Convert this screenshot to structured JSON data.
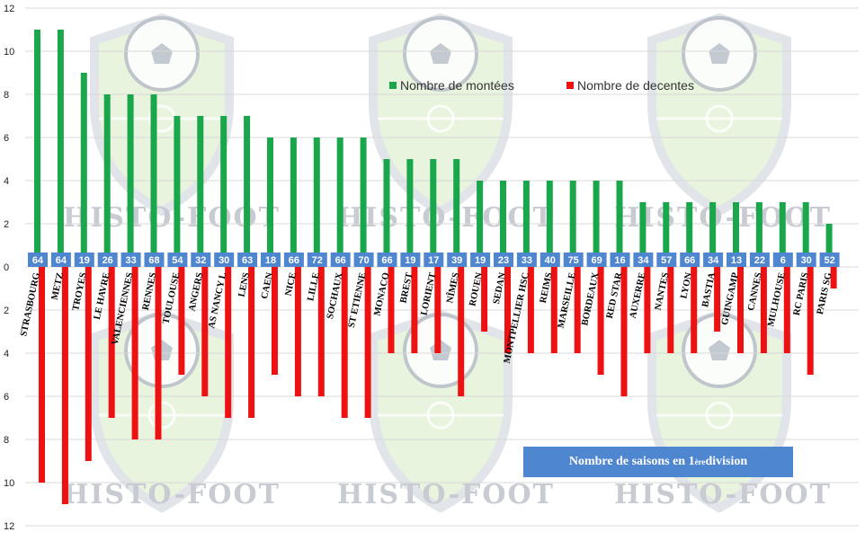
{
  "chart_data": {
    "type": "bar",
    "title": "",
    "xlabel": "",
    "ylabel": "",
    "ylim": [
      -12,
      12
    ],
    "yticks": [
      12,
      10,
      8,
      6,
      4,
      2,
      0,
      2,
      4,
      6,
      8,
      10,
      12
    ],
    "grid": "horizontal",
    "legend_position": "top-center",
    "categories": [
      "STRASBOURG",
      "METZ",
      "TROYES",
      "LE HAVRE",
      "VALENCIENNES",
      "RENNES",
      "TOULOUSE",
      "ANGERS",
      "AS NANCY L",
      "LENS",
      "CAEN",
      "NICE",
      "LILLE",
      "SOCHAUX",
      "ST ETIENNE",
      "MONACO",
      "BREST",
      "LORIENT",
      "NÎMES",
      "ROUEN",
      "SEDAN",
      "MONTPELLIER HSC",
      "REIMS",
      "MARSEILLE",
      "BORDEAUX",
      "RED STAR",
      "AUXERRE",
      "NANTES",
      "LYON",
      "BASTIA",
      "GUINGAMP",
      "CANNES",
      "MULHOUSE",
      "RC PARIS",
      "PARIS SG"
    ],
    "seasons_in_first_division": [
      64,
      64,
      19,
      26,
      33,
      68,
      54,
      32,
      30,
      63,
      18,
      66,
      72,
      66,
      70,
      66,
      19,
      17,
      39,
      19,
      23,
      33,
      40,
      75,
      69,
      16,
      34,
      57,
      66,
      34,
      13,
      22,
      6,
      30,
      52
    ],
    "series": [
      {
        "name": "Nombre de montées",
        "color": "#1aa64a",
        "values": [
          11,
          11,
          9,
          8,
          8,
          8,
          7,
          7,
          7,
          7,
          6,
          6,
          6,
          6,
          6,
          5,
          5,
          5,
          5,
          4,
          4,
          4,
          4,
          4,
          4,
          4,
          3,
          3,
          3,
          3,
          3,
          3,
          3,
          3,
          2
        ]
      },
      {
        "name": "Nombre de decentes",
        "color": "#ee1111",
        "values": [
          10,
          11,
          9,
          7,
          8,
          8,
          5,
          6,
          7,
          7,
          5,
          6,
          6,
          7,
          7,
          4,
          4,
          4,
          6,
          3,
          4,
          4,
          4,
          4,
          5,
          6,
          4,
          4,
          4,
          3,
          4,
          4,
          4,
          5,
          1
        ]
      }
    ],
    "annotation": "Nombre de saisons en 1",
    "annotation_sup": "ère",
    "annotation_tail": " division"
  },
  "watermark": "HISTO-FOOT",
  "colors": {
    "badge": "#4f86d0",
    "grid": "#d9d9d9",
    "shield_fill": "#d7ecc4",
    "shield_stroke": "#c9cfd6"
  }
}
